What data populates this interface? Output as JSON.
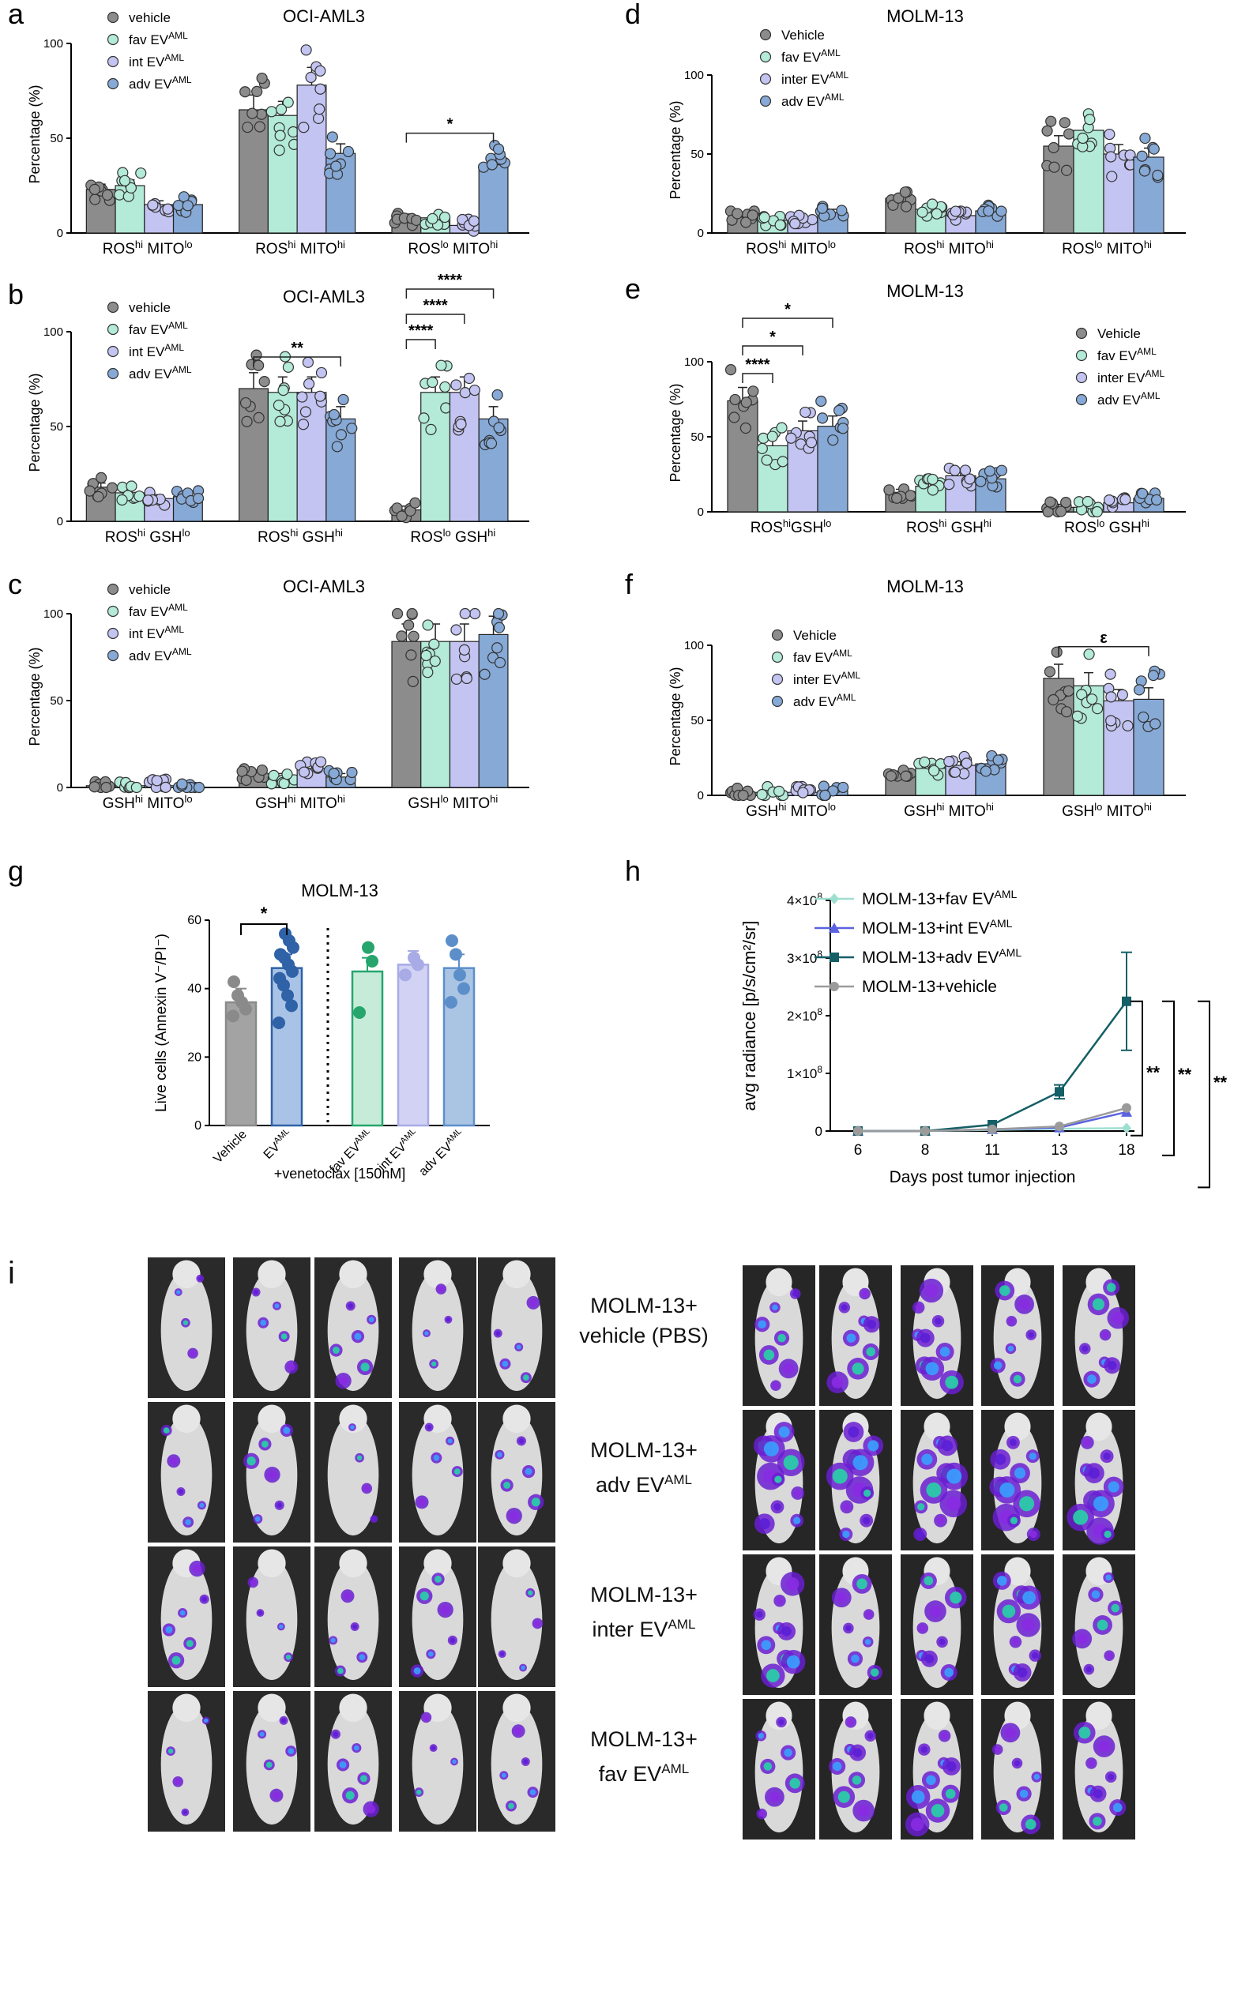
{
  "colors": {
    "vehicle": "#8c8c8c",
    "fav": "#b3ead8",
    "int": "#c4c4f2",
    "adv": "#86a9d6",
    "g_vehicle": "#8a8a8a",
    "g_ev": "#2f62a6",
    "g_fav": "#26a56d",
    "g_int": "#a8abe6",
    "g_adv": "#5c8fc9",
    "h_fav": "#9ddfd0",
    "h_int": "#5b63e0",
    "h_adv": "#155f66",
    "h_vehicle": "#9b9b9b"
  },
  "panels": [
    {
      "letter": "a",
      "title": "OCI-AML3",
      "ylabel": "Percentage (%)",
      "ylim": [
        0,
        100
      ],
      "yticks": [
        "0",
        "50",
        "100"
      ],
      "groups": [
        {
          "main1": "ROS",
          "sup1": "hi",
          "main2": " MITO",
          "sub2": "lo"
        },
        {
          "main1": "ROS",
          "sup1": "hi",
          "main2": " MITO",
          "sup2": "hi"
        },
        {
          "main1": "ROS",
          "sup1": "lo",
          "main2": " MITO",
          "sup2": "hi"
        }
      ],
      "legend": [
        {
          "text": "vehicle",
          "sup": ""
        },
        {
          "text": "fav EV",
          "sup": "AML"
        },
        {
          "text": "int EV",
          "sup": "AML"
        },
        {
          "text": "adv EV",
          "sup": "AML"
        }
      ],
      "series": [
        {
          "name": "vehicle",
          "values": [
            23,
            65,
            8
          ]
        },
        {
          "name": "fav EV",
          "values": [
            25,
            62,
            8
          ]
        },
        {
          "name": "int EV",
          "values": [
            15,
            78,
            4
          ]
        },
        {
          "name": "adv EV",
          "values": [
            15,
            42,
            36
          ]
        }
      ],
      "sig": [
        {
          "from": "2-0",
          "to": "2-3",
          "label": "*"
        }
      ]
    },
    {
      "letter": "b",
      "title": "OCI-AML3",
      "ylabel": "Percentage (%)",
      "ylim": [
        0,
        100
      ],
      "yticks": [
        "0",
        "50",
        "100"
      ],
      "groups": [
        {
          "main1": "ROS",
          "sup1": "hi",
          "main2": " GSH",
          "sub2": "lo"
        },
        {
          "main1": "ROS",
          "sup1": "hi",
          "main2": " GSH",
          "sup2": "hi"
        },
        {
          "main1": "ROS",
          "sup1": "lo",
          "main2": " GSH",
          "sup2": "hi"
        }
      ],
      "legend": [
        {
          "text": "vehicle",
          "sup": ""
        },
        {
          "text": "fav EV",
          "sup": "AML"
        },
        {
          "text": "int EV",
          "sup": "AML"
        },
        {
          "text": "adv EV",
          "sup": "AML"
        }
      ],
      "series": [
        {
          "name": "vehicle",
          "values": [
            18,
            70,
            6
          ]
        },
        {
          "name": "fav EV",
          "values": [
            15,
            68,
            68
          ]
        },
        {
          "name": "int EV",
          "values": [
            12,
            68,
            68
          ]
        },
        {
          "name": "adv EV",
          "values": [
            13,
            54,
            54
          ]
        }
      ],
      "sig": [
        {
          "from": "1-0",
          "to": "1-3",
          "label": "**"
        },
        {
          "from": "2-0",
          "to": "2-1",
          "label": "****"
        },
        {
          "from": "2-0",
          "to": "2-2",
          "label": "****"
        },
        {
          "from": "2-0",
          "to": "2-3",
          "label": "****"
        }
      ]
    },
    {
      "letter": "c",
      "title": "OCI-AML3",
      "ylabel": "Percentage (%)",
      "ylim": [
        0,
        100
      ],
      "yticks": [
        "0",
        "50",
        "100"
      ],
      "groups": [
        {
          "main1": "GSH",
          "sup1": "hi",
          "main2": " MITO",
          "sub2": "lo"
        },
        {
          "main1": "GSH",
          "sup1": "hi",
          "main2": " MITO",
          "sup2": "hi"
        },
        {
          "main1": "GSH",
          "sup1": "lo",
          "main2": " MITO",
          "sup2": "hi"
        }
      ],
      "legend": [
        {
          "text": "vehicle",
          "sup": ""
        },
        {
          "text": "fav EV",
          "sup": "AML"
        },
        {
          "text": "int EV",
          "sup": "AML"
        },
        {
          "text": "adv EV",
          "sup": "AML"
        }
      ],
      "series": [
        {
          "name": "vehicle",
          "values": [
            1,
            8,
            84
          ]
        },
        {
          "name": "fav EV",
          "values": [
            1,
            6,
            84
          ]
        },
        {
          "name": "int EV",
          "values": [
            1,
            11,
            84
          ]
        },
        {
          "name": "adv EV",
          "values": [
            1,
            6,
            88
          ]
        }
      ],
      "sig": []
    },
    {
      "letter": "d",
      "title": "MOLM-13",
      "ylabel": "Percentage (%)",
      "ylim": [
        0,
        100
      ],
      "yticks": [
        "0",
        "50",
        "100"
      ],
      "groups": [
        {
          "main1": "ROS",
          "sup1": "hi",
          "main2": " MITO",
          "sub2": "lo"
        },
        {
          "main1": "ROS",
          "sup1": "hi",
          "main2": " MITO",
          "sup2": "hi"
        },
        {
          "main1": "ROS",
          "sup1": "lo",
          "main2": " MITO",
          "sup2": "hi"
        }
      ],
      "legend": [
        {
          "text": "Vehicle",
          "sup": ""
        },
        {
          "text": "fav EV",
          "sup": "AML"
        },
        {
          "text": "inter EV",
          "sup": "AML"
        },
        {
          "text": "adv EV",
          "sup": "AML"
        }
      ],
      "series": [
        {
          "name": "Vehicle",
          "values": [
            10,
            22,
            55
          ]
        },
        {
          "name": "fav EV",
          "values": [
            8,
            15,
            65
          ]
        },
        {
          "name": "inter EV",
          "values": [
            9,
            11,
            50
          ]
        },
        {
          "name": "adv EV",
          "values": [
            13,
            14,
            48
          ]
        }
      ],
      "sig": []
    },
    {
      "letter": "e",
      "title": "MOLM-13",
      "ylabel": "Percentage (%)",
      "ylim": [
        0,
        100
      ],
      "yticks": [
        "0",
        "50",
        "100"
      ],
      "groups": [
        {
          "main1": "ROS",
          "sup1": "hi",
          "main2": "GSH",
          "sub2": "lo"
        },
        {
          "main1": "ROS",
          "sup1": "hi",
          "main2": " GSH",
          "sup2": "hi"
        },
        {
          "main1": "ROS",
          "sup1": "lo",
          "main2": " GSH",
          "sup2": "hi"
        }
      ],
      "legend": [
        {
          "text": "Vehicle",
          "sup": ""
        },
        {
          "text": "fav EV",
          "sup": "AML"
        },
        {
          "text": "inter EV",
          "sup": "AML"
        },
        {
          "text": "adv EV",
          "sup": "AML"
        }
      ],
      "series": [
        {
          "name": "Vehicle",
          "values": [
            74,
            13,
            3
          ]
        },
        {
          "name": "fav EV",
          "values": [
            44,
            17,
            3
          ]
        },
        {
          "name": "inter EV",
          "values": [
            54,
            24,
            6
          ]
        },
        {
          "name": "adv EV",
          "values": [
            57,
            22,
            9
          ]
        }
      ],
      "sig": [
        {
          "from": "0-0",
          "to": "0-1",
          "label": "****"
        },
        {
          "from": "0-0",
          "to": "0-2",
          "label": "*"
        },
        {
          "from": "0-0",
          "to": "0-3",
          "label": "*"
        }
      ]
    },
    {
      "letter": "f",
      "title": "MOLM-13",
      "ylabel": "Percentage (%)",
      "ylim": [
        0,
        100
      ],
      "yticks": [
        "0",
        "50",
        "100"
      ],
      "groups": [
        {
          "main1": "GSH",
          "sup1": "hi",
          "main2": " MITO",
          "sub2": "lo"
        },
        {
          "main1": "GSH",
          "sup1": "hi",
          "main2": " MITO",
          "sup2": "hi"
        },
        {
          "main1": "GSH",
          "sup1": "lo",
          "main2": " MITO",
          "sup2": "hi"
        }
      ],
      "legend": [
        {
          "text": "Vehicle",
          "sup": ""
        },
        {
          "text": "fav EV",
          "sup": "AML"
        },
        {
          "text": "inter EV",
          "sup": "AML"
        },
        {
          "text": "adv EV",
          "sup": "AML"
        }
      ],
      "series": [
        {
          "name": "Vehicle",
          "values": [
            2,
            13,
            78
          ]
        },
        {
          "name": "fav EV",
          "values": [
            2,
            18,
            73
          ]
        },
        {
          "name": "inter EV",
          "values": [
            2,
            20,
            63
          ]
        },
        {
          "name": "adv EV",
          "values": [
            3,
            21,
            64
          ]
        }
      ],
      "sig": [
        {
          "from": "2-0",
          "to": "2-3",
          "label": "ε"
        }
      ]
    }
  ],
  "panel_g": {
    "letter": "g",
    "title": "MOLM-13",
    "ylabel": "Live cells (Annexin V⁻/PI⁻)",
    "ylim": [
      0,
      60
    ],
    "yticks": [
      "0",
      "20",
      "40",
      "60"
    ],
    "bars": [
      {
        "label": "Vehicle",
        "sup": "",
        "value": 36,
        "points": [
          32,
          34,
          36,
          38,
          42
        ]
      },
      {
        "label": "EV",
        "sup": "AML",
        "value": 46,
        "points": [
          30,
          35,
          38,
          41,
          43,
          45,
          47,
          49,
          50,
          52,
          54,
          56
        ]
      },
      {
        "label": "fav EV",
        "sup": "AML",
        "value": 45,
        "points": [
          33,
          48,
          52
        ]
      },
      {
        "label": "int EV",
        "sup": "AML",
        "value": 47,
        "points": [
          44,
          47,
          49
        ]
      },
      {
        "label": "adv EV",
        "sup": "AML",
        "value": 46,
        "points": [
          36,
          40,
          44,
          50,
          54
        ]
      }
    ],
    "sig": "*",
    "footer": "+venetoclax [150nM]"
  },
  "chart_data": [
    {
      "type": "bar",
      "panel": "a",
      "title": "OCI-AML3",
      "ylabel": "Percentage (%)",
      "categories": [
        "ROShi MITOlo",
        "ROShi MITOhi",
        "ROSlo MITOhi"
      ],
      "ylim": [
        0,
        100
      ],
      "series": [
        {
          "name": "vehicle",
          "values": [
            23,
            65,
            8
          ]
        },
        {
          "name": "fav EVAML",
          "values": [
            25,
            62,
            8
          ]
        },
        {
          "name": "int EVAML",
          "values": [
            15,
            78,
            4
          ]
        },
        {
          "name": "adv EVAML",
          "values": [
            15,
            42,
            36
          ]
        }
      ]
    },
    {
      "type": "bar",
      "panel": "b",
      "title": "OCI-AML3",
      "ylabel": "Percentage (%)",
      "categories": [
        "ROShi GSHlo",
        "ROShi GSHhi",
        "ROSlo GSHhi"
      ],
      "ylim": [
        0,
        100
      ],
      "series": [
        {
          "name": "vehicle",
          "values": [
            18,
            70,
            6
          ]
        },
        {
          "name": "fav EVAML",
          "values": [
            15,
            68,
            68
          ]
        },
        {
          "name": "int EVAML",
          "values": [
            12,
            68,
            68
          ]
        },
        {
          "name": "adv EVAML",
          "values": [
            13,
            54,
            54
          ]
        }
      ]
    },
    {
      "type": "bar",
      "panel": "c",
      "title": "OCI-AML3",
      "ylabel": "Percentage (%)",
      "categories": [
        "GSHhi MITOlo",
        "GSHhi MITOhi",
        "GSHlo MITOhi"
      ],
      "ylim": [
        0,
        100
      ],
      "series": [
        {
          "name": "vehicle",
          "values": [
            1,
            8,
            84
          ]
        },
        {
          "name": "fav EVAML",
          "values": [
            1,
            6,
            84
          ]
        },
        {
          "name": "int EVAML",
          "values": [
            1,
            11,
            84
          ]
        },
        {
          "name": "adv EVAML",
          "values": [
            1,
            6,
            88
          ]
        }
      ]
    },
    {
      "type": "bar",
      "panel": "d",
      "title": "MOLM-13",
      "ylabel": "Percentage (%)",
      "categories": [
        "ROShi MITOlo",
        "ROShi MITOhi",
        "ROSlo MITOhi"
      ],
      "ylim": [
        0,
        100
      ],
      "series": [
        {
          "name": "Vehicle",
          "values": [
            10,
            22,
            55
          ]
        },
        {
          "name": "fav EVAML",
          "values": [
            8,
            15,
            65
          ]
        },
        {
          "name": "inter EVAML",
          "values": [
            9,
            11,
            50
          ]
        },
        {
          "name": "adv EVAML",
          "values": [
            13,
            14,
            48
          ]
        }
      ]
    },
    {
      "type": "bar",
      "panel": "e",
      "title": "MOLM-13",
      "ylabel": "Percentage (%)",
      "categories": [
        "ROShiGSHlo",
        "ROShi GSHhi",
        "ROSlo GSHhi"
      ],
      "ylim": [
        0,
        100
      ],
      "series": [
        {
          "name": "Vehicle",
          "values": [
            74,
            13,
            3
          ]
        },
        {
          "name": "fav EVAML",
          "values": [
            44,
            17,
            3
          ]
        },
        {
          "name": "inter EVAML",
          "values": [
            54,
            24,
            6
          ]
        },
        {
          "name": "adv EVAML",
          "values": [
            57,
            22,
            9
          ]
        }
      ]
    },
    {
      "type": "bar",
      "panel": "f",
      "title": "MOLM-13",
      "ylabel": "Percentage (%)",
      "categories": [
        "GSHhi MITOlo",
        "GSHhi MITOhi",
        "GSHlo MITOhi"
      ],
      "ylim": [
        0,
        100
      ],
      "series": [
        {
          "name": "Vehicle",
          "values": [
            2,
            13,
            78
          ]
        },
        {
          "name": "fav EVAML",
          "values": [
            2,
            18,
            73
          ]
        },
        {
          "name": "inter EVAML",
          "values": [
            2,
            20,
            63
          ]
        },
        {
          "name": "adv EVAML",
          "values": [
            3,
            21,
            64
          ]
        }
      ]
    },
    {
      "type": "bar",
      "panel": "g",
      "title": "MOLM-13",
      "ylabel": "Live cells (Annexin V⁻/PI⁻)",
      "categories": [
        "Vehicle",
        "EVAML",
        "fav EVAML",
        "int EVAML",
        "adv EVAML"
      ],
      "values": [
        36,
        46,
        45,
        47,
        46
      ],
      "ylim": [
        0,
        60
      ]
    },
    {
      "type": "line",
      "panel": "h",
      "ylabel": "avg radiance [p/s/cm²/sr]",
      "xlabel": "Days post tumor injection",
      "x": [
        6,
        8,
        11,
        13,
        18
      ],
      "ylim": [
        0,
        400000000
      ],
      "series": [
        {
          "name": "MOLM-13+fav EVAML",
          "values": [
            0,
            0,
            2000000,
            4000000,
            5000000
          ]
        },
        {
          "name": "MOLM-13+int EVAML",
          "values": [
            0,
            0,
            3000000,
            6000000,
            33000000
          ]
        },
        {
          "name": "MOLM-13+adv EVAML",
          "values": [
            0,
            0,
            11000000,
            68000000,
            225000000
          ]
        },
        {
          "name": "MOLM-13+vehicle",
          "values": [
            0,
            0,
            3000000,
            8000000,
            40000000
          ]
        }
      ]
    }
  ],
  "panel_h": {
    "letter": "h",
    "ylabel": "avg radiance [p/s/cm²/sr]",
    "xlabel": "Days post tumor injection",
    "xticks": [
      "6",
      "8",
      "11",
      "13",
      "18"
    ],
    "yticks": [
      {
        "main": "0",
        "exp": ""
      },
      {
        "main": "1×10",
        "exp": "8"
      },
      {
        "main": "2×10",
        "exp": "8"
      },
      {
        "main": "3×10",
        "exp": "8"
      },
      {
        "main": "4×10",
        "exp": "8"
      }
    ],
    "legend": [
      {
        "text": "MOLM-13+fav EV",
        "sup": "AML"
      },
      {
        "text": "MOLM-13+int EV",
        "sup": "AML"
      },
      {
        "text": "MOLM-13+adv EV",
        "sup": "AML"
      },
      {
        "text": "MOLM-13+vehicle",
        "sup": ""
      }
    ],
    "sig": [
      "**",
      "**",
      "**"
    ]
  },
  "panel_i": {
    "letter": "i",
    "rows": [
      {
        "line1": "MOLM-13+",
        "line2": "vehicle (PBS)",
        "sup": ""
      },
      {
        "line1": "MOLM-13+",
        "line2": "adv EV",
        "sup": "AML"
      },
      {
        "line1": "MOLM-13+",
        "line2": "inter EV",
        "sup": "AML"
      },
      {
        "line1": "MOLM-13+",
        "line2": "fav EV",
        "sup": "AML"
      }
    ]
  }
}
